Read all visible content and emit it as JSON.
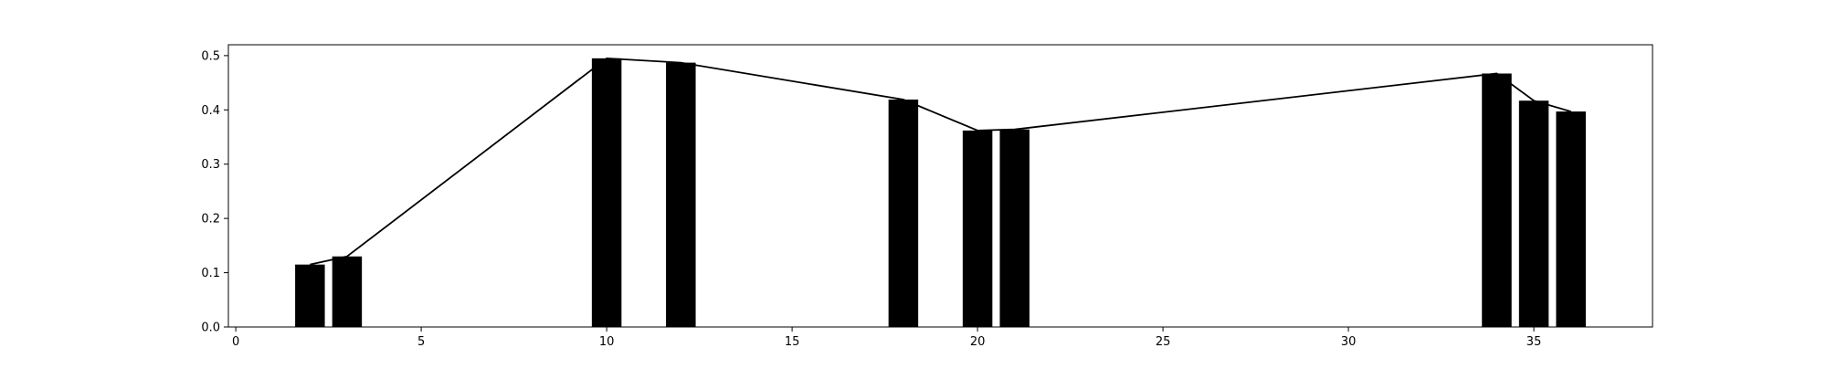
{
  "chart_data": {
    "type": "bar",
    "x": [
      2,
      3,
      10,
      12,
      18,
      20,
      21,
      34,
      35,
      36
    ],
    "values": [
      0.115,
      0.13,
      0.495,
      0.487,
      0.419,
      0.362,
      0.364,
      0.467,
      0.417,
      0.397
    ],
    "line_overlay": true,
    "title": "",
    "xlabel": "",
    "ylabel": "",
    "xlim": [
      -0.2,
      38.2
    ],
    "ylim": [
      0,
      0.52
    ],
    "xticks": [
      0,
      5,
      10,
      15,
      20,
      25,
      30,
      35
    ],
    "yticks": [
      0.0,
      0.1,
      0.2,
      0.3,
      0.4,
      0.5
    ],
    "xtick_labels": [
      "0",
      "5",
      "10",
      "15",
      "20",
      "25",
      "30",
      "35"
    ],
    "ytick_labels": [
      "0.0",
      "0.1",
      "0.2",
      "0.3",
      "0.4",
      "0.5"
    ],
    "grid": false,
    "legend": "none",
    "colors": {
      "bar": "#000000",
      "line": "#000000",
      "axis": "#000000",
      "background": "#ffffff"
    }
  }
}
